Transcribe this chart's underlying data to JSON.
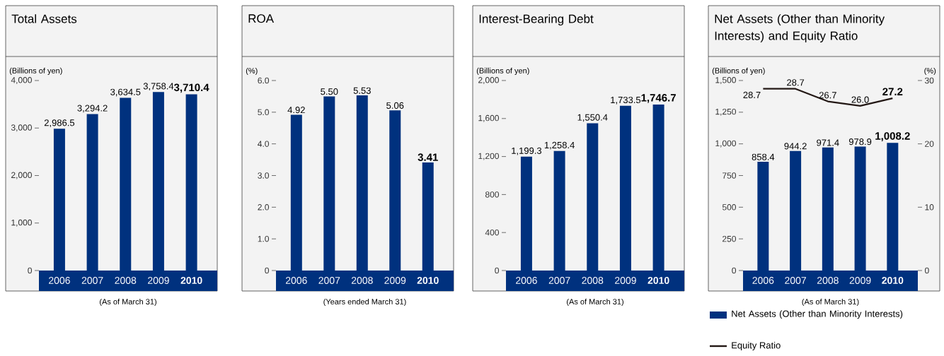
{
  "chart_data": [
    {
      "type": "bar",
      "title": "Total Assets",
      "ylabel": "(Billions of yen)",
      "xlabel": "(As of March 31)",
      "categories": [
        "2006",
        "2007",
        "2008",
        "2009",
        "2010"
      ],
      "values": [
        2986.5,
        3294.2,
        3634.5,
        3758.4,
        3710.4
      ],
      "value_labels": [
        "2,986.5",
        "3,294.2",
        "3,634.5",
        "3,758.4",
        "3,710.4"
      ],
      "color": "#00317e",
      "ylim": [
        0,
        4000
      ],
      "yticks": [
        0,
        {
          "value": 1000,
          "label": "1,000"
        },
        {
          "value": 2000,
          "label": "2,000"
        },
        {
          "value": 3000,
          "label": "3,000"
        },
        {
          "value": 4000,
          "label": "4,000"
        }
      ]
    },
    {
      "type": "bar",
      "title": "ROA",
      "ylabel": "(%)",
      "xlabel": "(Years ended March 31)",
      "categories": [
        "2006",
        "2007",
        "2008",
        "2009",
        "2010"
      ],
      "values": [
        4.92,
        5.5,
        5.53,
        5.06,
        3.41
      ],
      "value_labels": [
        "4.92",
        "5.50",
        "5.53",
        "5.06",
        "3.41"
      ],
      "color": "#00317e",
      "ylim": [
        0,
        6
      ],
      "yticks": [
        0,
        {
          "value": 1,
          "label": "1.0"
        },
        {
          "value": 2,
          "label": "2.0"
        },
        {
          "value": 3,
          "label": "3.0"
        },
        {
          "value": 4,
          "label": "4.0"
        },
        {
          "value": 5,
          "label": "5.0"
        },
        {
          "value": 6,
          "label": "6.0"
        }
      ]
    },
    {
      "type": "bar",
      "title": "Interest-Bearing Debt",
      "ylabel": "(Billions of yen)",
      "xlabel": "(As of March 31)",
      "categories": [
        "2006",
        "2007",
        "2008",
        "2009",
        "2010"
      ],
      "values": [
        1199.3,
        1258.4,
        1550.4,
        1733.5,
        1746.7
      ],
      "value_labels": [
        "1,199.3",
        "1,258.4",
        "1,550.4",
        "1,733.5",
        "1,746.7"
      ],
      "color": "#00317e",
      "ylim": [
        0,
        2000
      ],
      "yticks": [
        0,
        400,
        800,
        {
          "value": 1200,
          "label": "1,200"
        },
        {
          "value": 1600,
          "label": "1,600"
        },
        {
          "value": 2000,
          "label": "2,000"
        }
      ]
    },
    {
      "type": "bar",
      "title": "Net Assets (Other than Minority Interests) and Equity Ratio",
      "ylabel": "(Billions of yen)",
      "y2label": "(%)",
      "xlabel": "(As of March 31)",
      "categories": [
        "2006",
        "2007",
        "2008",
        "2009",
        "2010"
      ],
      "series": [
        {
          "name": "Net Assets (Other than Minority Interests)",
          "color": "#00317e",
          "values": [
            858.4,
            944.2,
            971.4,
            978.9,
            1008.2
          ],
          "value_labels": [
            "858.4",
            "944.2",
            "971.4",
            "978.9",
            "1,008.2"
          ]
        },
        {
          "name": "Equity Ratio",
          "type": "line",
          "axis": "y2",
          "color": "#231815",
          "values": [
            28.7,
            28.7,
            26.7,
            26.0,
            27.2
          ],
          "value_labels": [
            "28.7",
            "28.7",
            "26.7",
            "26.0",
            "27.2"
          ]
        }
      ],
      "ylim": [
        0,
        1500
      ],
      "yticks": [
        0,
        250,
        500,
        750,
        {
          "value": 1000,
          "label": "1,000"
        },
        {
          "value": 1250,
          "label": "1,250"
        },
        {
          "value": 1500,
          "label": "1,500"
        }
      ],
      "y2lim": [
        0,
        30
      ],
      "y2ticks": [
        0,
        10,
        20,
        30
      ],
      "legend": "bottom"
    }
  ]
}
